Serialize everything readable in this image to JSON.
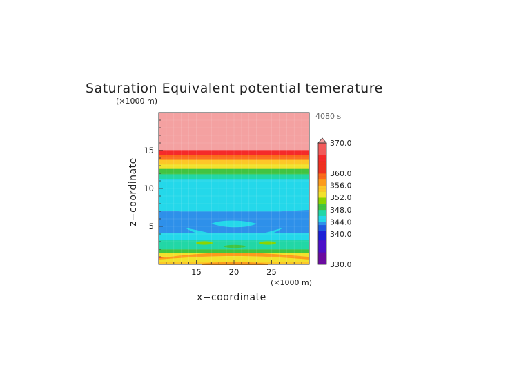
{
  "chart_data": {
    "type": "heatmap",
    "title": "Saturation Equivalent potential temerature",
    "xlabel": "x−coordinate",
    "ylabel": "z−coordinate",
    "x_unit": "(×1000 m)",
    "y_unit": "(×1000 m)",
    "time_label": "4080 s",
    "xlim": [
      10,
      30
    ],
    "ylim": [
      0,
      20
    ],
    "x_ticks": [
      "15",
      "20",
      "25"
    ],
    "x_tick_values": [
      15,
      20,
      25
    ],
    "y_ticks": [
      "5",
      "10",
      "15"
    ],
    "y_tick_values": [
      5,
      10,
      15
    ],
    "colorbar": {
      "min": 330,
      "max": 370,
      "labels": [
        "370.0",
        "360.0",
        "356.0",
        "352.0",
        "348.0",
        "344.0",
        "340.0",
        "330.0"
      ],
      "label_values": [
        370,
        360,
        356,
        352,
        348,
        344,
        340,
        330
      ]
    },
    "layers": [
      {
        "z_bottom": 0.0,
        "z_top": 0.4,
        "value": 354
      },
      {
        "z_bottom": 0.4,
        "z_top": 1.0,
        "value": 362
      },
      {
        "z_bottom": 1.0,
        "z_top": 1.5,
        "value": 352
      },
      {
        "z_bottom": 1.5,
        "z_top": 2.0,
        "value": 348
      },
      {
        "z_bottom": 2.0,
        "z_top": 2.6,
        "value": 346
      },
      {
        "z_bottom": 2.6,
        "z_top": 3.2,
        "value": 347
      },
      {
        "z_bottom": 3.2,
        "z_top": 4.5,
        "value": 344
      },
      {
        "z_bottom": 4.5,
        "z_top": 7.0,
        "value": 343
      },
      {
        "z_bottom": 7.0,
        "z_top": 10.0,
        "value": 344
      },
      {
        "z_bottom": 10.0,
        "z_top": 11.2,
        "value": 345
      },
      {
        "z_bottom": 11.2,
        "z_top": 11.9,
        "value": 347
      },
      {
        "z_bottom": 11.9,
        "z_top": 12.6,
        "value": 349
      },
      {
        "z_bottom": 12.6,
        "z_top": 13.2,
        "value": 352
      },
      {
        "z_bottom": 13.2,
        "z_top": 13.8,
        "value": 355
      },
      {
        "z_bottom": 13.8,
        "z_top": 14.4,
        "value": 358
      },
      {
        "z_bottom": 14.4,
        "z_top": 15.0,
        "value": 364
      },
      {
        "z_bottom": 15.0,
        "z_top": 20.0,
        "value": 370
      }
    ],
    "grid": true,
    "legend": "right"
  }
}
